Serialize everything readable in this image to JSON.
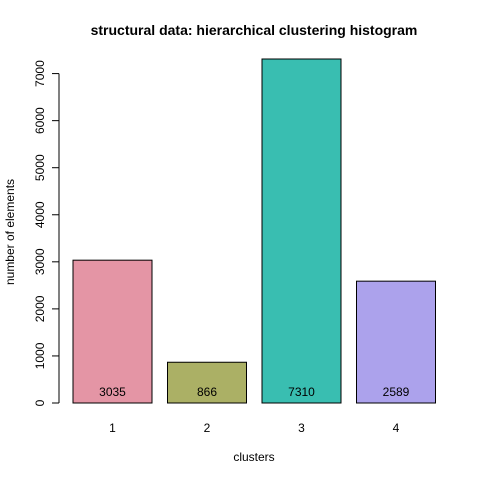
{
  "chart_data": {
    "type": "bar",
    "title": "structural data: hierarchical clustering histogram",
    "xlabel": "clusters",
    "ylabel": "number of elements",
    "categories": [
      "1",
      "2",
      "3",
      "4"
    ],
    "values": [
      3035,
      866,
      7310,
      2589
    ],
    "data_labels": [
      "3035",
      "866",
      "7310",
      "2589"
    ],
    "colors": [
      "#E495A5",
      "#ABB065",
      "#39BEB1",
      "#ACA2EC"
    ],
    "yticks": [
      0,
      1000,
      2000,
      3000,
      4000,
      5000,
      6000,
      7000
    ],
    "ytick_labels": [
      "0",
      "1000",
      "2000",
      "3000",
      "4000",
      "5000",
      "6000",
      "7000"
    ],
    "ylim": [
      0,
      7310
    ],
    "grid": false,
    "legend": "none"
  }
}
